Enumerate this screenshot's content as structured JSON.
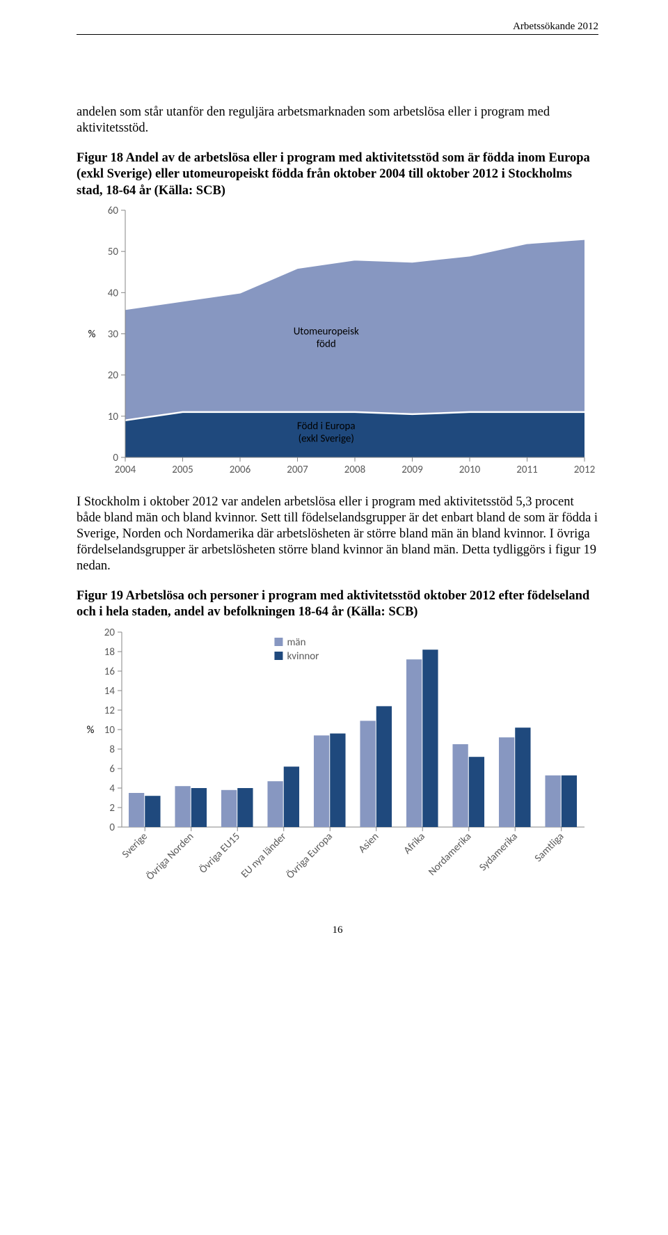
{
  "header": {
    "right_label": "Arbetssökande 2012"
  },
  "intro_para": "andelen som står utanför den reguljära arbetsmarknaden som arbetslösa eller i program med aktivitetsstöd.",
  "fig18": {
    "title": "Figur 18 Andel av de arbetslösa eller i program med aktivitetsstöd som är födda inom Europa (exkl Sverige) eller utomeuropeiskt födda från oktober 2004 till oktober 2012 i Stockholms stad, 18-64 år (Källa: SCB)",
    "type": "area",
    "x_categories": [
      "2004",
      "2005",
      "2006",
      "2007",
      "2008",
      "2009",
      "2010",
      "2011",
      "2012"
    ],
    "y_ticks": [
      0,
      10,
      20,
      30,
      40,
      50,
      60
    ],
    "y_axis_title": "%",
    "series": [
      {
        "name": "Född i Europa\n(exkl Sverige)",
        "fill": "#1f497d",
        "stroke": "#ffffff",
        "values": [
          9,
          11,
          11,
          11,
          11,
          10.5,
          11,
          11,
          11
        ]
      },
      {
        "name": "Utomeuropeisk\nfödd",
        "fill": "#8797c1",
        "stroke": "#ffffff",
        "values": [
          27,
          27,
          29,
          35,
          37,
          37,
          38,
          41,
          42
        ]
      }
    ],
    "label_fontsize": 15,
    "label_font": "Calibri, Arial, sans-serif",
    "tick_fontsize": 15,
    "axis_color": "#868686",
    "tick_color": "#868686",
    "background": "#ffffff",
    "label_text_color": "#000000"
  },
  "mid_para": "I Stockholm i oktober 2012 var andelen arbetslösa eller i program med aktivitetsstöd 5,3 procent både bland män och bland kvinnor. Sett till födelselandsgrupper är det enbart bland de som är födda i Sverige, Norden och Nordamerika där arbetslösheten är större bland män än bland kvinnor. I övriga fördelselandsgrupper är arbetslösheten större bland kvinnor än bland män. Detta tydliggörs i figur 19 nedan.",
  "fig19": {
    "title": "Figur 19 Arbetslösa och personer i program med aktivitetsstöd oktober 2012 efter födelseland och i hela staden, andel av befolkningen 18-64 år (Källa: SCB)",
    "type": "bar",
    "y_ticks": [
      0,
      2,
      4,
      6,
      8,
      10,
      12,
      14,
      16,
      18,
      20
    ],
    "y_axis_title": "%",
    "categories": [
      "Sverige",
      "Övriga Norden",
      "Övriga EU15",
      "EU nya länder",
      "Övriga Europa",
      "Asien",
      "Afrika",
      "Nordamerika",
      "Sydamerika",
      "Samtliga"
    ],
    "series": [
      {
        "name": "män",
        "color": "#8797c1",
        "values": [
          3.5,
          4.2,
          3.8,
          4.7,
          9.4,
          10.9,
          17.2,
          8.5,
          9.2,
          5.3
        ]
      },
      {
        "name": "kvinnor",
        "color": "#1f497d",
        "values": [
          3.2,
          4.0,
          4.0,
          6.2,
          9.6,
          12.4,
          18.2,
          7.2,
          10.2,
          5.3
        ]
      }
    ],
    "legend_square_size": 12,
    "label_font": "Calibri, Arial, sans-serif",
    "tick_fontsize": 15,
    "axis_color": "#868686",
    "background": "#ffffff"
  },
  "page_number": "16"
}
